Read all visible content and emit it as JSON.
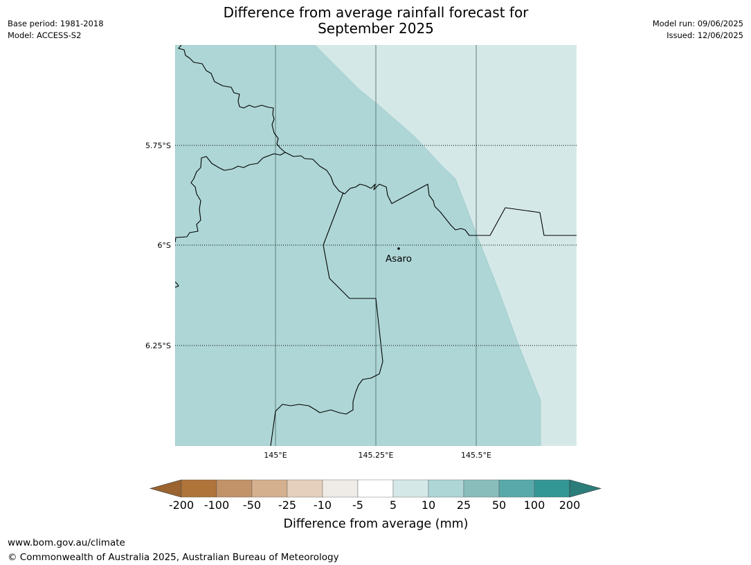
{
  "header": {
    "title": "Difference from average rainfall forecast for\nSeptember 2025",
    "base_period": "Base period: 1981-2018",
    "model": "Model: ACCESS-S2",
    "model_run": "Model run: 09/06/2025",
    "issued": "Issued: 12/06/2025"
  },
  "map": {
    "lat_labels": [
      "5.75°S",
      "6°S",
      "6.25°S"
    ],
    "lon_labels": [
      "145°E",
      "145.25°E",
      "145.5°E"
    ],
    "place": {
      "name": "Asaro"
    },
    "fill_colors": {
      "category_10_25": "#aed6d6",
      "category_5_10": "#d5e8e8"
    }
  },
  "colorbar": {
    "title": "Difference from average (mm)",
    "ticks": [
      "-200",
      "-100",
      "-50",
      "-25",
      "-10",
      "-5",
      "5",
      "10",
      "25",
      "50",
      "100",
      "200"
    ],
    "colors": [
      "#9a632f",
      "#ae743a",
      "#c29268",
      "#d4b08f",
      "#e4d0bd",
      "#efebe7",
      "#ffffff",
      "#d5e8e8",
      "#aed6d6",
      "#88bdbc",
      "#5aa9aa",
      "#339795",
      "#2c7d79"
    ]
  },
  "footer": {
    "url": "www.bom.gov.au/climate",
    "copyright": "© Commonwealth of Australia 2025, Australian Bureau of Meteorology"
  }
}
